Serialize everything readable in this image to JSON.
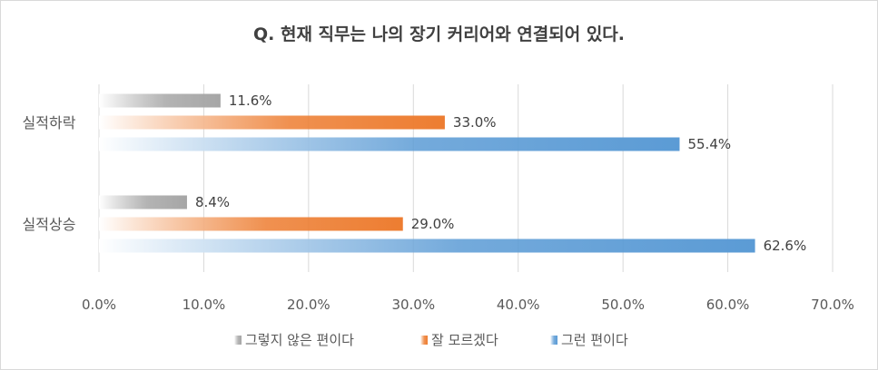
{
  "chart_data": {
    "type": "bar",
    "orientation": "horizontal",
    "title": "Q. 현재 직무는 나의 장기 커리어와 연결되어 있다.",
    "categories": [
      "실적하락",
      "실적상승"
    ],
    "series": [
      {
        "name": "그렇지 않은 편이다",
        "values": [
          11.6,
          8.4
        ],
        "labels": [
          "11.6%",
          "8.4%"
        ],
        "color": "#a6a6a6"
      },
      {
        "name": "잘 모르겠다",
        "values": [
          33.0,
          29.0
        ],
        "labels": [
          "33.0%",
          "29.0%"
        ],
        "color": "#ed7d31"
      },
      {
        "name": "그런 편이다",
        "values": [
          55.4,
          62.6
        ],
        "labels": [
          "55.4%",
          "62.6%"
        ],
        "color": "#5b9bd5"
      }
    ],
    "xlim": [
      0,
      70
    ],
    "xticks": [
      "0.0%",
      "10.0%",
      "20.0%",
      "30.0%",
      "40.0%",
      "50.0%",
      "60.0%",
      "70.0%"
    ],
    "grid": true,
    "legend": "bottom"
  }
}
